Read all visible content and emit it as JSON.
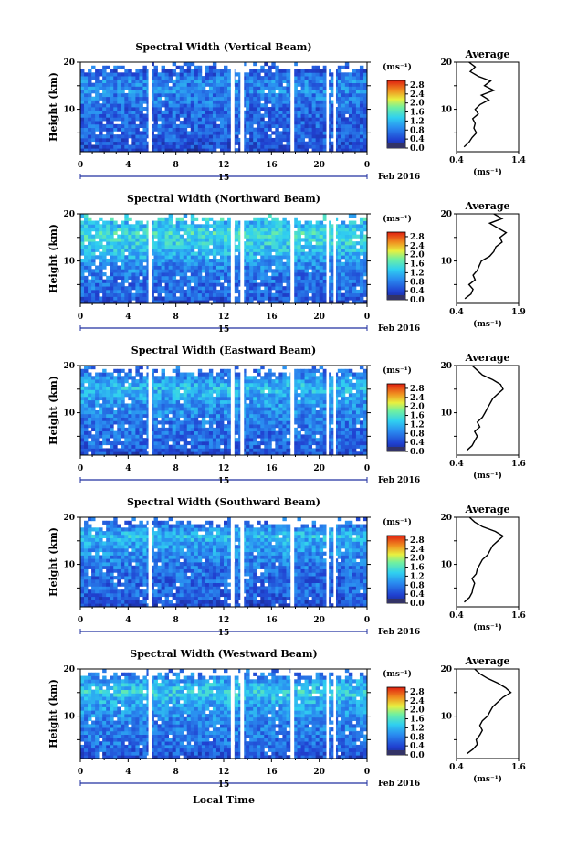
{
  "figure": {
    "xlabel": "Local Time",
    "ylabel": "Height (km)",
    "day_label": "15",
    "date_label": "Feb 2016",
    "colorbar_unit": "(ms⁻¹)",
    "average_title": "Average",
    "average_xlabel": "(ms⁻¹)"
  },
  "chart_data": [
    {
      "type": "heatmap",
      "title": "Spectral Width (Vertical Beam)",
      "x_ticks": [
        "0",
        "4",
        "8",
        "12",
        "16",
        "20",
        "0"
      ],
      "y_ticks": [
        "10",
        "20"
      ],
      "ylim": [
        1,
        20
      ],
      "xlim": [
        0,
        24
      ],
      "colorbar_ticks": [
        "0.0",
        "0.4",
        "0.8",
        "1.2",
        "1.6",
        "2.0",
        "2.4",
        "2.8"
      ],
      "colorbar_range": [
        0,
        3.0
      ],
      "data_gaps_hours": [
        [
          5.7,
          6.0
        ],
        [
          12.6,
          12.9
        ],
        [
          13.4,
          13.7
        ],
        [
          17.6,
          17.9
        ],
        [
          20.6,
          20.8
        ],
        [
          21.2,
          21.4
        ]
      ],
      "average_profile": {
        "xlim": [
          0.4,
          1.4
        ],
        "x_ticks": [
          "0.4",
          "1.4"
        ],
        "heights_km": [
          2,
          3,
          4,
          5,
          6,
          7,
          8,
          9,
          10,
          11,
          12,
          13,
          14,
          15,
          16,
          17,
          18,
          19,
          20
        ],
        "values": [
          0.52,
          0.6,
          0.65,
          0.72,
          0.68,
          0.7,
          0.66,
          0.75,
          0.7,
          0.78,
          0.92,
          0.8,
          1.0,
          0.85,
          0.95,
          0.75,
          0.62,
          0.7,
          0.6
        ]
      }
    },
    {
      "type": "heatmap",
      "title": "Spectral Width (Northward Beam)",
      "x_ticks": [
        "0",
        "4",
        "8",
        "12",
        "16",
        "20",
        "0"
      ],
      "y_ticks": [
        "10",
        "20"
      ],
      "ylim": [
        1,
        20
      ],
      "xlim": [
        0,
        24
      ],
      "colorbar_ticks": [
        "0.0",
        "0.4",
        "0.8",
        "1.2",
        "1.6",
        "2.0",
        "2.4",
        "2.8"
      ],
      "colorbar_range": [
        0,
        3.0
      ],
      "data_gaps_hours": [
        [
          5.7,
          6.0
        ],
        [
          12.6,
          12.9
        ],
        [
          13.4,
          13.7
        ],
        [
          17.6,
          17.9
        ],
        [
          20.6,
          20.8
        ],
        [
          21.2,
          21.4
        ]
      ],
      "average_profile": {
        "xlim": [
          0.4,
          1.9
        ],
        "x_ticks": [
          "0.4",
          "1.9"
        ],
        "heights_km": [
          2,
          3,
          4,
          5,
          6,
          7,
          8,
          9,
          10,
          11,
          12,
          13,
          14,
          15,
          16,
          17,
          18,
          19,
          20
        ],
        "values": [
          0.6,
          0.75,
          0.8,
          0.7,
          0.85,
          0.8,
          0.9,
          0.95,
          1.0,
          1.2,
          1.3,
          1.35,
          1.5,
          1.45,
          1.6,
          1.4,
          1.2,
          1.5,
          1.3
        ]
      }
    },
    {
      "type": "heatmap",
      "title": "Spectral Width (Eastward Beam)",
      "x_ticks": [
        "0",
        "4",
        "8",
        "12",
        "16",
        "20",
        "0"
      ],
      "y_ticks": [
        "10",
        "20"
      ],
      "ylim": [
        1,
        20
      ],
      "xlim": [
        0,
        24
      ],
      "colorbar_ticks": [
        "0.0",
        "0.4",
        "0.8",
        "1.2",
        "1.6",
        "2.0",
        "2.4",
        "2.8"
      ],
      "colorbar_range": [
        0,
        3.0
      ],
      "data_gaps_hours": [
        [
          5.7,
          6.0
        ],
        [
          12.6,
          12.9
        ],
        [
          13.4,
          13.7
        ],
        [
          17.6,
          17.9
        ],
        [
          20.6,
          20.8
        ],
        [
          21.2,
          21.4
        ]
      ],
      "average_profile": {
        "xlim": [
          0.4,
          1.6
        ],
        "x_ticks": [
          "0.4",
          "1.6"
        ],
        "heights_km": [
          2,
          3,
          4,
          5,
          6,
          7,
          8,
          9,
          10,
          11,
          12,
          13,
          14,
          15,
          16,
          17,
          18,
          19,
          20
        ],
        "values": [
          0.6,
          0.7,
          0.75,
          0.8,
          0.75,
          0.85,
          0.8,
          0.9,
          0.95,
          1.0,
          1.05,
          1.1,
          1.2,
          1.3,
          1.25,
          1.1,
          0.9,
          0.8,
          0.7
        ]
      }
    },
    {
      "type": "heatmap",
      "title": "Spectral Width (Southward Beam)",
      "x_ticks": [
        "0",
        "4",
        "8",
        "12",
        "16",
        "20",
        "0"
      ],
      "y_ticks": [
        "10",
        "20"
      ],
      "ylim": [
        1,
        20
      ],
      "xlim": [
        0,
        24
      ],
      "colorbar_ticks": [
        "0.0",
        "0.4",
        "0.8",
        "1.2",
        "1.6",
        "2.0",
        "2.4",
        "2.8"
      ],
      "colorbar_range": [
        0,
        3.0
      ],
      "data_gaps_hours": [
        [
          5.7,
          6.0
        ],
        [
          12.6,
          12.9
        ],
        [
          13.4,
          13.7
        ],
        [
          17.6,
          17.9
        ],
        [
          20.6,
          20.8
        ],
        [
          21.2,
          21.4
        ]
      ],
      "average_profile": {
        "xlim": [
          0.4,
          1.6
        ],
        "x_ticks": [
          "0.4",
          "1.6"
        ],
        "heights_km": [
          2,
          3,
          4,
          5,
          6,
          7,
          8,
          9,
          10,
          11,
          12,
          13,
          14,
          15,
          16,
          17,
          18,
          19,
          20
        ],
        "values": [
          0.55,
          0.65,
          0.7,
          0.72,
          0.75,
          0.7,
          0.78,
          0.8,
          0.85,
          0.9,
          1.0,
          1.05,
          1.1,
          1.2,
          1.3,
          1.15,
          0.9,
          0.75,
          0.65
        ]
      }
    },
    {
      "type": "heatmap",
      "title": "Spectral Width (Westward Beam)",
      "x_ticks": [
        "0",
        "4",
        "8",
        "12",
        "16",
        "20",
        "0"
      ],
      "y_ticks": [
        "10",
        "20"
      ],
      "ylim": [
        1,
        20
      ],
      "xlim": [
        0,
        24
      ],
      "colorbar_ticks": [
        "0.0",
        "0.4",
        "0.8",
        "1.2",
        "1.6",
        "2.0",
        "2.4",
        "2.8"
      ],
      "colorbar_range": [
        0,
        3.0
      ],
      "data_gaps_hours": [
        [
          5.7,
          6.0
        ],
        [
          12.6,
          12.9
        ],
        [
          13.4,
          13.7
        ],
        [
          17.6,
          17.9
        ],
        [
          20.6,
          20.8
        ],
        [
          21.2,
          21.4
        ]
      ],
      "average_profile": {
        "xlim": [
          0.4,
          1.6
        ],
        "x_ticks": [
          "0.4",
          "1.6"
        ],
        "heights_km": [
          2,
          3,
          4,
          5,
          6,
          7,
          8,
          9,
          10,
          11,
          12,
          13,
          14,
          15,
          16,
          17,
          18,
          19,
          20
        ],
        "values": [
          0.6,
          0.72,
          0.8,
          0.78,
          0.85,
          0.9,
          0.85,
          0.9,
          1.0,
          1.05,
          1.1,
          1.2,
          1.3,
          1.45,
          1.35,
          1.2,
          1.0,
          0.85,
          0.75
        ]
      }
    }
  ]
}
